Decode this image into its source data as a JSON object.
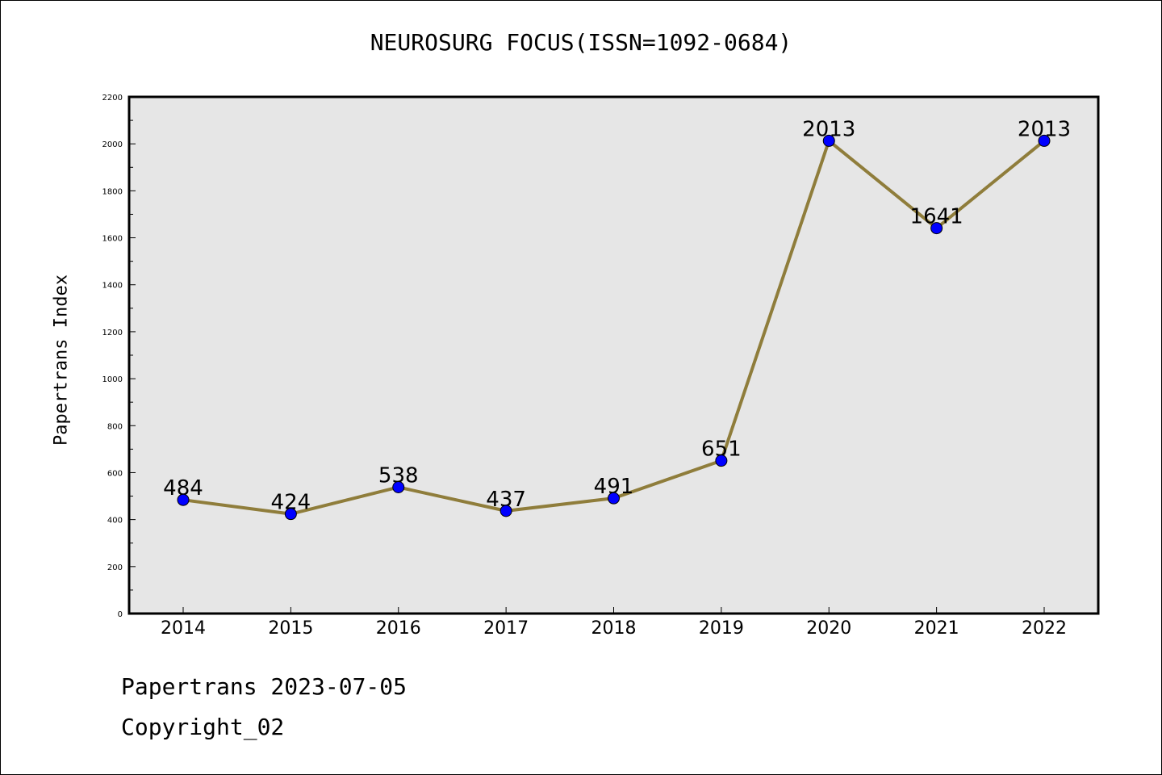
{
  "chart_data": {
    "type": "line",
    "title": "NEUROSURG FOCUS(ISSN=1092-0684)",
    "ylabel": "Papertrans Index",
    "xlabel": "",
    "categories": [
      "2014",
      "2015",
      "2016",
      "2017",
      "2018",
      "2019",
      "2020",
      "2021",
      "2022"
    ],
    "series": [
      {
        "values": [
          484,
          424,
          538,
          437,
          491,
          651,
          2013,
          1641,
          2013
        ]
      }
    ],
    "ylim": [
      0,
      2200
    ],
    "yticks": [
      0,
      200,
      400,
      600,
      800,
      1000,
      1200,
      1400,
      1600,
      1800,
      2000,
      2200
    ],
    "data_labels": [
      "484",
      "424",
      "538",
      "437",
      "491",
      "651",
      "2013",
      "1641",
      "2013"
    ],
    "grid": false,
    "colors": {
      "line": "#8f7d3b",
      "marker": "#0000ff",
      "plot_bg": "#e6e6e6"
    }
  },
  "footer": {
    "line1": "Papertrans 2023-07-05",
    "line2": "Copyright_02"
  }
}
